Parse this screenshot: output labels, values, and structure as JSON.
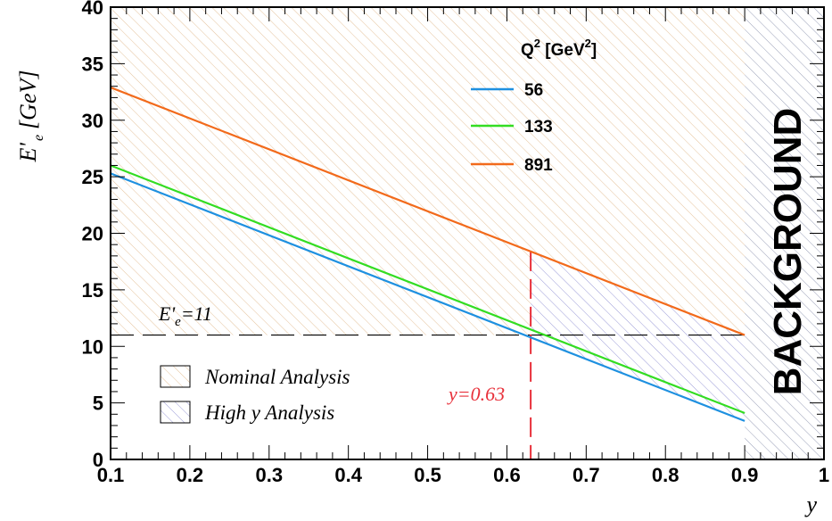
{
  "chart_data": {
    "type": "line",
    "x_label": "y",
    "y_label_main": "E'",
    "y_label_sub": "e",
    "y_label_unit": "[GeV]",
    "xlim": [
      0.1,
      1.0
    ],
    "ylim": [
      0,
      40
    ],
    "x_ticks": [
      "0.1",
      "0.2",
      "0.3",
      "0.4",
      "0.5",
      "0.6",
      "0.7",
      "0.8",
      "0.9",
      "1"
    ],
    "y_ticks": [
      "0",
      "5",
      "10",
      "15",
      "20",
      "25",
      "30",
      "35",
      "40"
    ],
    "legend": {
      "title_main": "Q",
      "title_sup": "2",
      "title_rest": " [GeV",
      "title_sup2": "2",
      "title_end": "]",
      "placement": "top-right"
    },
    "series": [
      {
        "name": "56",
        "color": "#1e90e0",
        "x": [
          0.1,
          0.9
        ],
        "y": [
          25.3,
          3.4
        ]
      },
      {
        "name": "133",
        "color": "#33dd22",
        "x": [
          0.1,
          0.9
        ],
        "y": [
          26.0,
          4.1
        ]
      },
      {
        "name": "891",
        "color": "#f26a1b",
        "x": [
          0.1,
          0.9
        ],
        "y": [
          32.9,
          11.0
        ]
      }
    ],
    "cut_line": {
      "label_main": "E'",
      "label_sub": "e",
      "label_rest": "=11",
      "y": 11,
      "x_range": [
        0.1,
        0.9
      ]
    },
    "y_cut": {
      "label": "y=0.63",
      "x": 0.63,
      "color": "#e8303a"
    },
    "background_region": {
      "label": "BACKGROUND",
      "x_range": [
        0.9,
        1.0
      ]
    },
    "regions_legend": [
      {
        "name": "Nominal Analysis",
        "color": "#e8c7a0"
      },
      {
        "name": "High y Analysis",
        "color": "#9a9ad8"
      }
    ]
  }
}
